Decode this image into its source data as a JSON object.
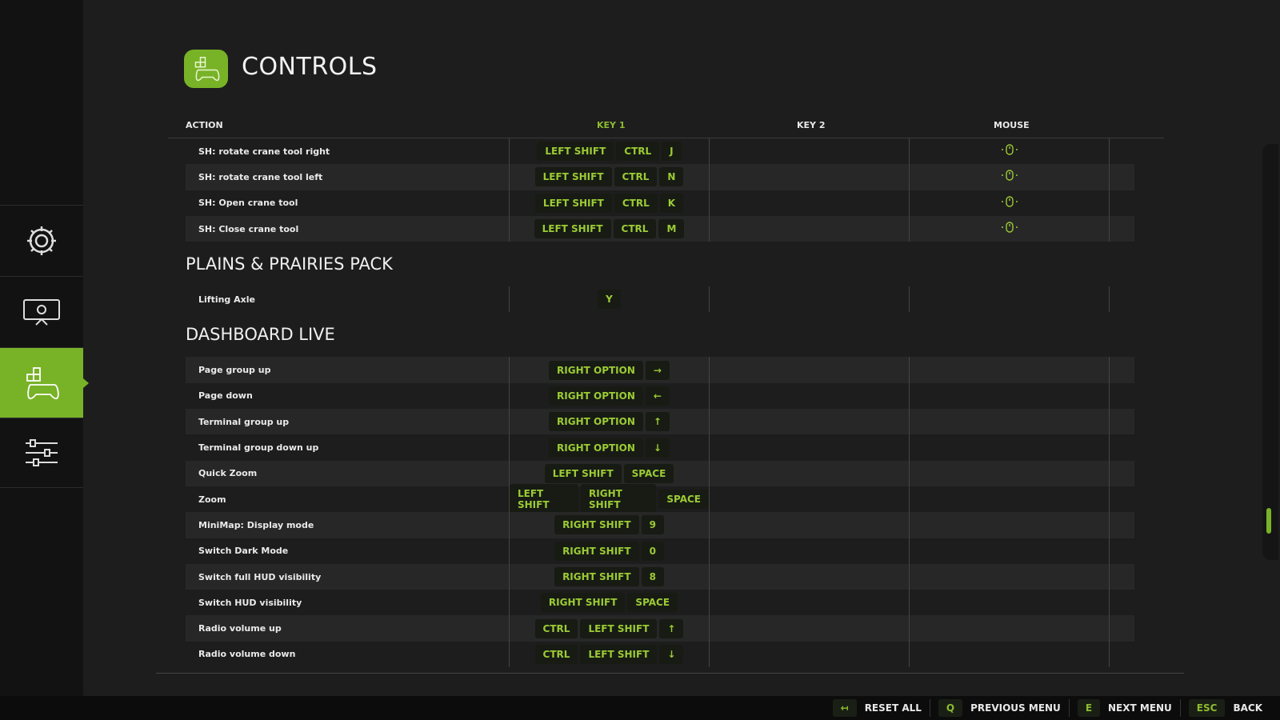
{
  "title": "CONTROLS",
  "colors": {
    "accent": "#78b227",
    "key_text": "#9ccb34"
  },
  "sidebar": {
    "items": [
      {
        "icon": "gear-icon"
      },
      {
        "icon": "display-settings-icon"
      },
      {
        "icon": "controller-icon",
        "active": true
      },
      {
        "icon": "sliders-icon"
      }
    ]
  },
  "columns": {
    "action": "ACTION",
    "key1": "KEY 1",
    "key2": "KEY 2",
    "mouse": "MOUSE"
  },
  "groups": [
    {
      "heading": "",
      "rows": [
        {
          "action": "SH: rotate crane tool right",
          "key1": [
            "LEFT SHIFT",
            "CTRL",
            "J"
          ],
          "mouse": "mouse-scroll-icon"
        },
        {
          "action": "SH: rotate crane tool left",
          "key1": [
            "LEFT SHIFT",
            "CTRL",
            "N"
          ],
          "mouse": "mouse-scroll-icon"
        },
        {
          "action": "SH: Open crane tool",
          "key1": [
            "LEFT SHIFT",
            "CTRL",
            "K"
          ],
          "mouse": "mouse-wheel-up-icon"
        },
        {
          "action": "SH: Close crane tool",
          "key1": [
            "LEFT SHIFT",
            "CTRL",
            "M"
          ],
          "mouse": "mouse-wheel-down-icon"
        }
      ]
    },
    {
      "heading": "PLAINS & PRAIRIES PACK",
      "rows": [
        {
          "action": "Lifting Axle",
          "key1": [
            "Y"
          ]
        }
      ]
    },
    {
      "heading": "DASHBOARD LIVE",
      "rows": [
        {
          "action": "Page group up",
          "key1": [
            "RIGHT OPTION",
            "→"
          ]
        },
        {
          "action": "Page down",
          "key1": [
            "RIGHT OPTION",
            "←"
          ]
        },
        {
          "action": "Terminal group up",
          "key1": [
            "RIGHT OPTION",
            "↑"
          ]
        },
        {
          "action": "Terminal group down up",
          "key1": [
            "RIGHT OPTION",
            "↓"
          ]
        },
        {
          "action": "Quick Zoom",
          "key1": [
            "LEFT SHIFT",
            "SPACE"
          ]
        },
        {
          "action": "Zoom",
          "key1": [
            "LEFT SHIFT",
            "RIGHT SHIFT",
            "SPACE"
          ]
        },
        {
          "action": "MiniMap: Display mode",
          "key1": [
            "RIGHT SHIFT",
            "9"
          ]
        },
        {
          "action": "Switch Dark Mode",
          "key1": [
            "RIGHT SHIFT",
            "0"
          ]
        },
        {
          "action": "Switch full HUD visibility",
          "key1": [
            "RIGHT SHIFT",
            "8"
          ]
        },
        {
          "action": "Switch HUD visibility",
          "key1": [
            "RIGHT SHIFT",
            "SPACE"
          ]
        },
        {
          "action": "Radio volume up",
          "key1": [
            "CTRL",
            "LEFT SHIFT",
            "↑"
          ]
        },
        {
          "action": "Radio volume down",
          "key1": [
            "CTRL",
            "LEFT SHIFT",
            "↓"
          ]
        }
      ]
    }
  ],
  "footer": [
    {
      "key": "↤",
      "label": "RESET ALL"
    },
    {
      "key": "Q",
      "label": "PREVIOUS MENU"
    },
    {
      "key": "E",
      "label": "NEXT MENU"
    },
    {
      "key": "ESC",
      "label": "BACK"
    }
  ]
}
